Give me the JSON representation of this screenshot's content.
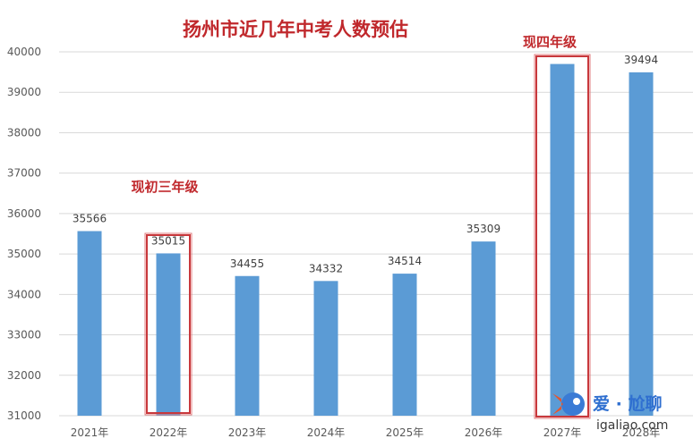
{
  "chart_data": {
    "type": "bar",
    "title": "扬州市近几年中考人数预估",
    "categories": [
      "2021年",
      "2022年",
      "2023年",
      "2024年",
      "2025年",
      "2026年",
      "2027年",
      "2028年"
    ],
    "values": [
      35566,
      35015,
      34455,
      34332,
      34514,
      35309,
      39700,
      39494
    ],
    "data_labels": [
      "35566",
      "35015",
      "34455",
      "34332",
      "34514",
      "35309",
      "",
      "39494"
    ],
    "ylim": [
      31000,
      40000
    ],
    "yticks": [
      31000,
      32000,
      33000,
      34000,
      35000,
      36000,
      37000,
      38000,
      39000,
      40000
    ],
    "grid": true,
    "bar_color": "#5b9bd5",
    "annotations": [
      {
        "text": "现初三年级",
        "category": "2022年",
        "color": "#c0282c"
      },
      {
        "text": "现四年级",
        "category": "2027年",
        "color": "#c0282c"
      }
    ]
  },
  "watermark": {
    "brand": "爱 · 尬聊",
    "site": "igaliao.com"
  }
}
